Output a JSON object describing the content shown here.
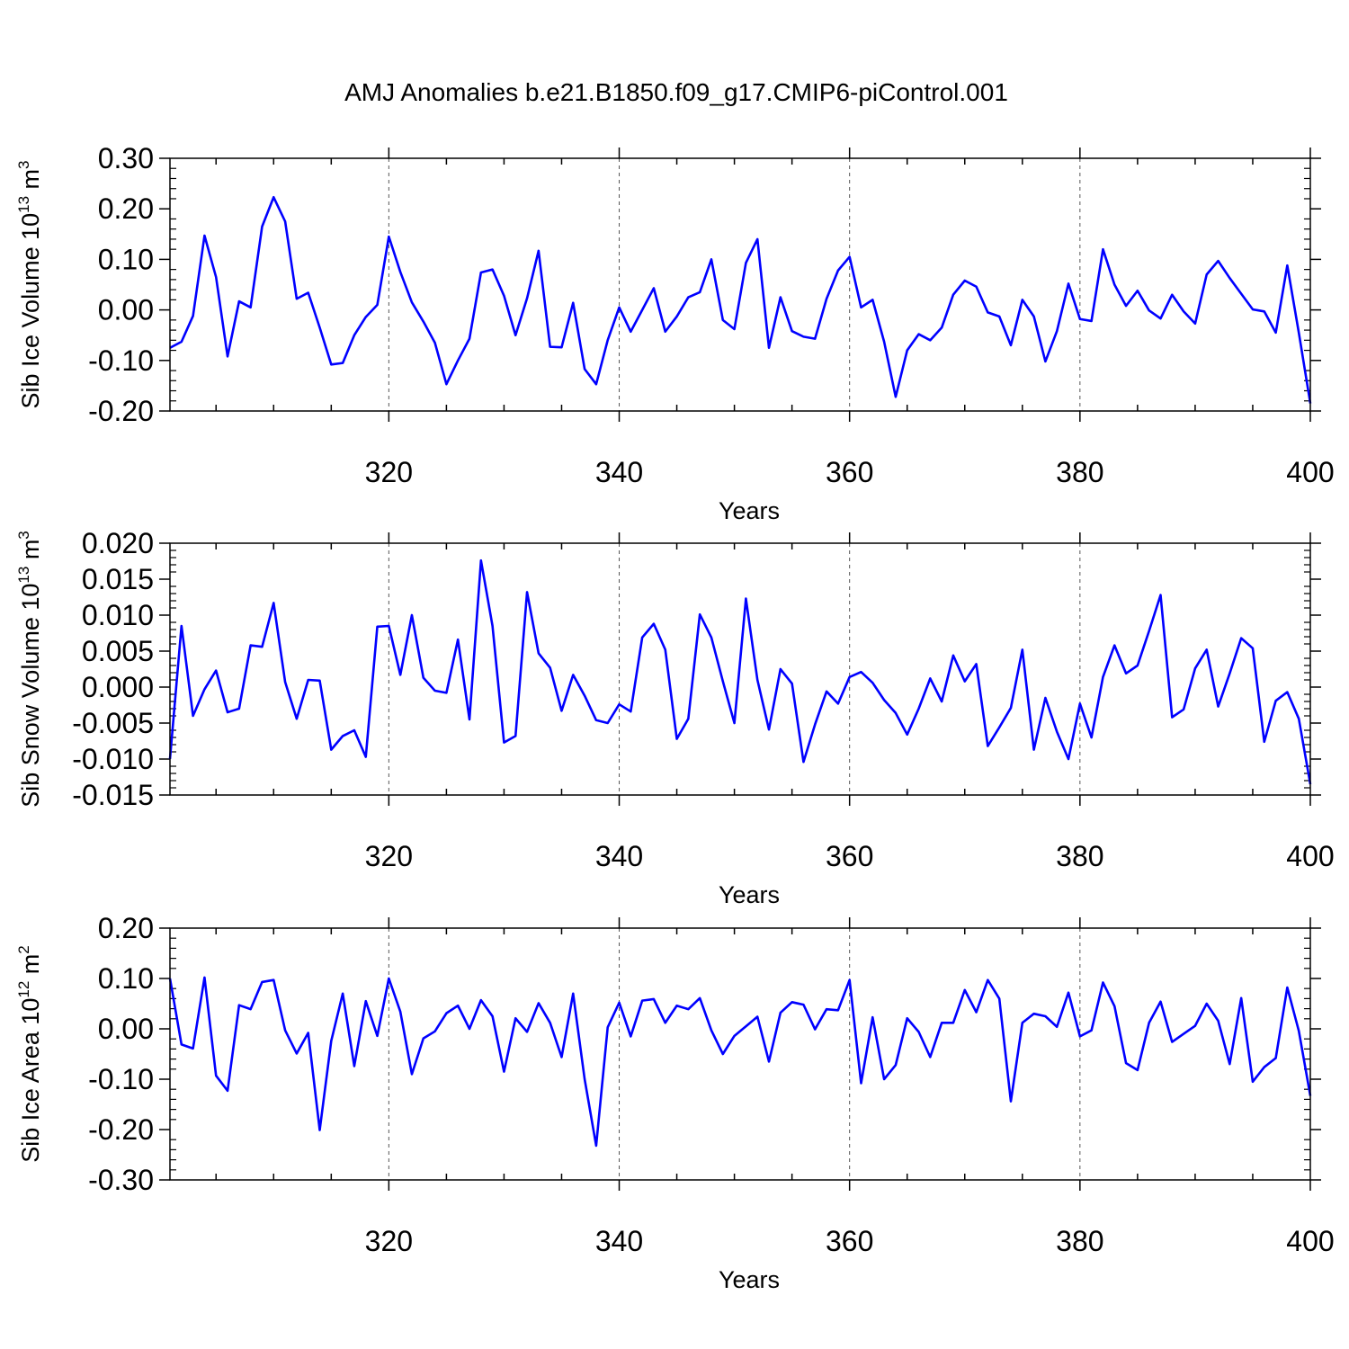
{
  "title": "AMJ Anomalies b.e21.B1850.f09_g17.CMIP6-piControl.001",
  "colors": {
    "series": "#0000ff",
    "axes": "#000000",
    "grid": "#555555"
  },
  "chart_data": [
    {
      "type": "line",
      "xlabel": "Years",
      "ylabel": {
        "text": "Sib Ice Volume 10",
        "sup": "13",
        "unit": " m",
        "unitsup": "3"
      },
      "xlim": [
        301,
        400
      ],
      "ylim": [
        -0.2,
        0.3
      ],
      "xticks": [
        320,
        340,
        360,
        380,
        400
      ],
      "yticks": [
        -0.2,
        -0.1,
        0.0,
        0.1,
        0.2,
        0.3
      ],
      "ytick_labels": [
        "-0.20",
        "-0.10",
        "0.00",
        "0.10",
        "0.20",
        "0.30"
      ],
      "grid": "dashed vertical at x ticks",
      "x_start": 301,
      "values": [
        -0.075,
        -0.063,
        -0.012,
        0.147,
        0.065,
        -0.092,
        0.017,
        0.005,
        0.165,
        0.223,
        0.175,
        0.022,
        0.034,
        -0.035,
        -0.108,
        -0.105,
        -0.05,
        -0.014,
        0.01,
        0.145,
        0.075,
        0.015,
        -0.023,
        -0.065,
        -0.147,
        -0.1,
        -0.057,
        0.074,
        0.08,
        0.028,
        -0.05,
        0.023,
        0.117,
        -0.073,
        -0.074,
        0.014,
        -0.117,
        -0.147,
        -0.06,
        0.005,
        -0.043,
        0.0,
        0.043,
        -0.043,
        -0.013,
        0.025,
        0.035,
        0.1,
        -0.02,
        -0.038,
        0.093,
        0.14,
        -0.075,
        0.025,
        -0.042,
        -0.053,
        -0.057,
        0.022,
        0.078,
        0.105,
        0.005,
        0.02,
        -0.063,
        -0.172,
        -0.08,
        -0.048,
        -0.06,
        -0.035,
        0.03,
        0.058,
        0.046,
        -0.005,
        -0.013,
        -0.07,
        0.02,
        -0.013,
        -0.102,
        -0.042,
        0.052,
        -0.018,
        -0.022,
        0.12,
        0.05,
        0.008,
        0.038,
        -0.001,
        -0.017,
        0.03,
        -0.003,
        -0.027,
        0.07,
        0.097,
        0.063,
        0.032,
        0.001,
        -0.003,
        -0.045,
        0.088,
        -0.045,
        -0.185
      ]
    },
    {
      "type": "line",
      "xlabel": "Years",
      "ylabel": {
        "text": "Sib Snow Volume 10",
        "sup": "13",
        "unit": " m",
        "unitsup": "3"
      },
      "xlim": [
        301,
        400
      ],
      "ylim": [
        -0.015,
        0.02
      ],
      "xticks": [
        320,
        340,
        360,
        380,
        400
      ],
      "yticks": [
        -0.015,
        -0.01,
        -0.005,
        0.0,
        0.005,
        0.01,
        0.015,
        0.02
      ],
      "ytick_labels": [
        "-0.015",
        "-0.010",
        "-0.005",
        "0.000",
        "0.005",
        "0.010",
        "0.015",
        "0.020"
      ],
      "grid": "dashed vertical at x ticks",
      "x_start": 301,
      "values": [
        -0.01,
        0.0085,
        -0.004,
        -0.0003,
        0.0023,
        -0.0035,
        -0.003,
        0.0058,
        0.0056,
        0.0117,
        0.0007,
        -0.0044,
        0.001,
        0.0009,
        -0.0087,
        -0.0068,
        -0.006,
        -0.0097,
        0.0084,
        0.0085,
        0.0017,
        0.01,
        0.0013,
        -0.0005,
        -0.0008,
        0.0066,
        -0.0045,
        0.0176,
        0.0085,
        -0.0077,
        -0.0068,
        0.0132,
        0.0047,
        0.0027,
        -0.0033,
        0.0017,
        -0.0012,
        -0.0046,
        -0.005,
        -0.0024,
        -0.0034,
        0.0069,
        0.0088,
        0.0052,
        -0.0072,
        -0.0044,
        0.0101,
        0.0069,
        0.0008,
        -0.005,
        0.0123,
        0.001,
        -0.0059,
        0.0025,
        0.0005,
        -0.0104,
        -0.0052,
        -0.0006,
        -0.0023,
        0.0014,
        0.0021,
        0.0006,
        -0.0018,
        -0.0036,
        -0.0066,
        -0.003,
        0.0012,
        -0.002,
        0.0044,
        0.0008,
        0.0032,
        -0.0082,
        -0.0056,
        -0.0029,
        0.0052,
        -0.0087,
        -0.0015,
        -0.0062,
        -0.01,
        -0.0023,
        -0.007,
        0.0014,
        0.0058,
        0.0019,
        0.003,
        0.0078,
        0.0128,
        -0.0042,
        -0.0031,
        0.0026,
        0.0052,
        -0.0027,
        0.0019,
        0.0068,
        0.0054,
        -0.0076,
        -0.0019,
        -0.0007,
        -0.0044,
        -0.0135
      ]
    },
    {
      "type": "line",
      "xlabel": "Years",
      "ylabel": {
        "text": "Sib Ice Area 10",
        "sup": "12",
        "unit": " m",
        "unitsup": "2"
      },
      "xlim": [
        301,
        400
      ],
      "ylim": [
        -0.3,
        0.2
      ],
      "xticks": [
        320,
        340,
        360,
        380,
        400
      ],
      "yticks": [
        -0.3,
        -0.2,
        -0.1,
        0.0,
        0.1,
        0.2
      ],
      "ytick_labels": [
        "-0.30",
        "-0.20",
        "-0.10",
        "0.00",
        "0.10",
        "0.20"
      ],
      "grid": "dashed vertical at x ticks",
      "x_start": 301,
      "values": [
        0.1,
        -0.031,
        -0.039,
        0.102,
        -0.093,
        -0.123,
        0.047,
        0.039,
        0.093,
        0.097,
        -0.003,
        -0.049,
        -0.008,
        -0.201,
        -0.024,
        0.07,
        -0.074,
        0.055,
        -0.014,
        0.1,
        0.034,
        -0.09,
        -0.019,
        -0.005,
        0.031,
        0.046,
        0.0,
        0.057,
        0.025,
        -0.085,
        0.021,
        -0.006,
        0.051,
        0.012,
        -0.056,
        0.07,
        -0.1,
        -0.232,
        0.003,
        0.052,
        -0.015,
        0.056,
        0.059,
        0.012,
        0.046,
        0.039,
        0.061,
        -0.003,
        -0.05,
        -0.014,
        0.005,
        0.024,
        -0.065,
        0.032,
        0.053,
        0.048,
        -0.001,
        0.039,
        0.037,
        0.097,
        -0.108,
        0.023,
        -0.1,
        -0.072,
        0.021,
        -0.006,
        -0.056,
        0.012,
        0.012,
        0.077,
        0.033,
        0.097,
        0.06,
        -0.144,
        0.012,
        0.03,
        0.025,
        0.004,
        0.072,
        -0.015,
        -0.003,
        0.092,
        0.045,
        -0.068,
        -0.082,
        0.012,
        0.054,
        -0.026,
        -0.01,
        0.006,
        0.05,
        0.016,
        -0.07,
        0.061,
        -0.105,
        -0.076,
        -0.058,
        0.082,
        -0.004,
        -0.133
      ]
    }
  ]
}
